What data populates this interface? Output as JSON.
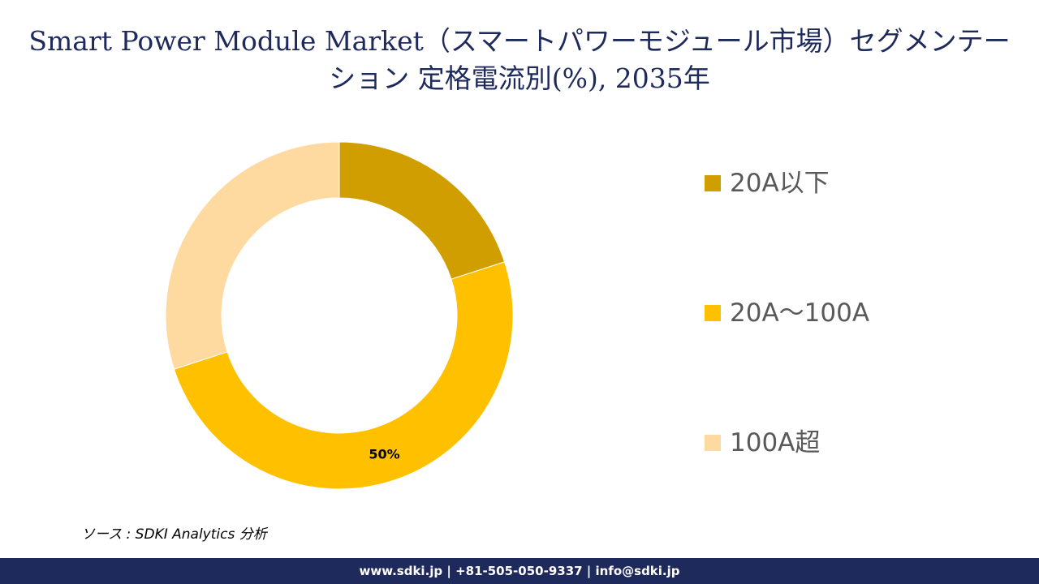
{
  "title": "Smart Power Module Market（スマートパワーモジュール市場）セグメンテーション 定格電流別(%), 2035年",
  "chart_data": {
    "type": "pie",
    "style": "donut",
    "categories": [
      "20A以下",
      "20A〜100A",
      "100A超"
    ],
    "values": [
      20,
      50,
      30
    ],
    "colors": [
      "#d19e00",
      "#ffc000",
      "#ffdaa0"
    ],
    "data_labels": [
      "",
      "50%",
      ""
    ],
    "legend_position": "right"
  },
  "source": "ソース : SDKI Analytics 分析",
  "footer": "www.sdki.jp | +81-505-050-9337 | info@sdki.jp"
}
